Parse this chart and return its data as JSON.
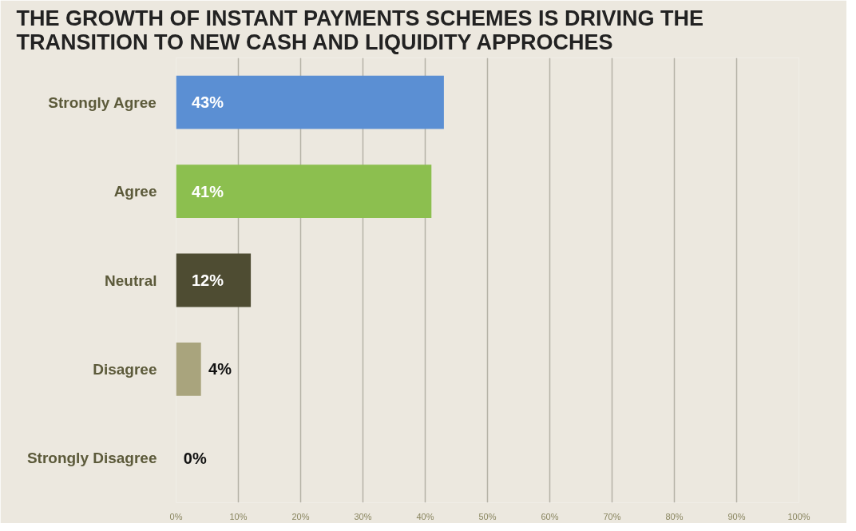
{
  "chart_data": {
    "type": "bar",
    "orientation": "horizontal",
    "title": "THE GROWTH OF INSTANT PAYMENTS SCHEMES IS DRIVING THE TRANSITION TO NEW CASH AND LIQUIDITY APPROCHES",
    "categories": [
      "Strongly Agree",
      "Agree",
      "Neutral",
      "Disagree",
      "Strongly Disagree"
    ],
    "values": [
      43,
      41,
      12,
      4,
      0
    ],
    "colors": [
      "#5b8fd3",
      "#8cbf4f",
      "#4e4c32",
      "#a9a47d",
      "#a9a47d"
    ],
    "value_labels": [
      "43%",
      "41%",
      "12%",
      "4%",
      "0%"
    ],
    "xlim": [
      0,
      100
    ],
    "xticks": [
      {
        "value": 0,
        "label": "0%"
      },
      {
        "value": 10,
        "label": "10%"
      },
      {
        "value": 20,
        "label": "20%"
      },
      {
        "value": 30,
        "label": "30%"
      },
      {
        "value": 40,
        "label": "40%"
      },
      {
        "value": 50,
        "label": "50%"
      },
      {
        "value": 60,
        "label": "60%"
      },
      {
        "value": 70,
        "label": "70%"
      },
      {
        "value": 80,
        "label": "80%"
      },
      {
        "value": 90,
        "label": "90%"
      },
      {
        "value": 100,
        "label": "100%"
      }
    ],
    "grid": "x"
  }
}
